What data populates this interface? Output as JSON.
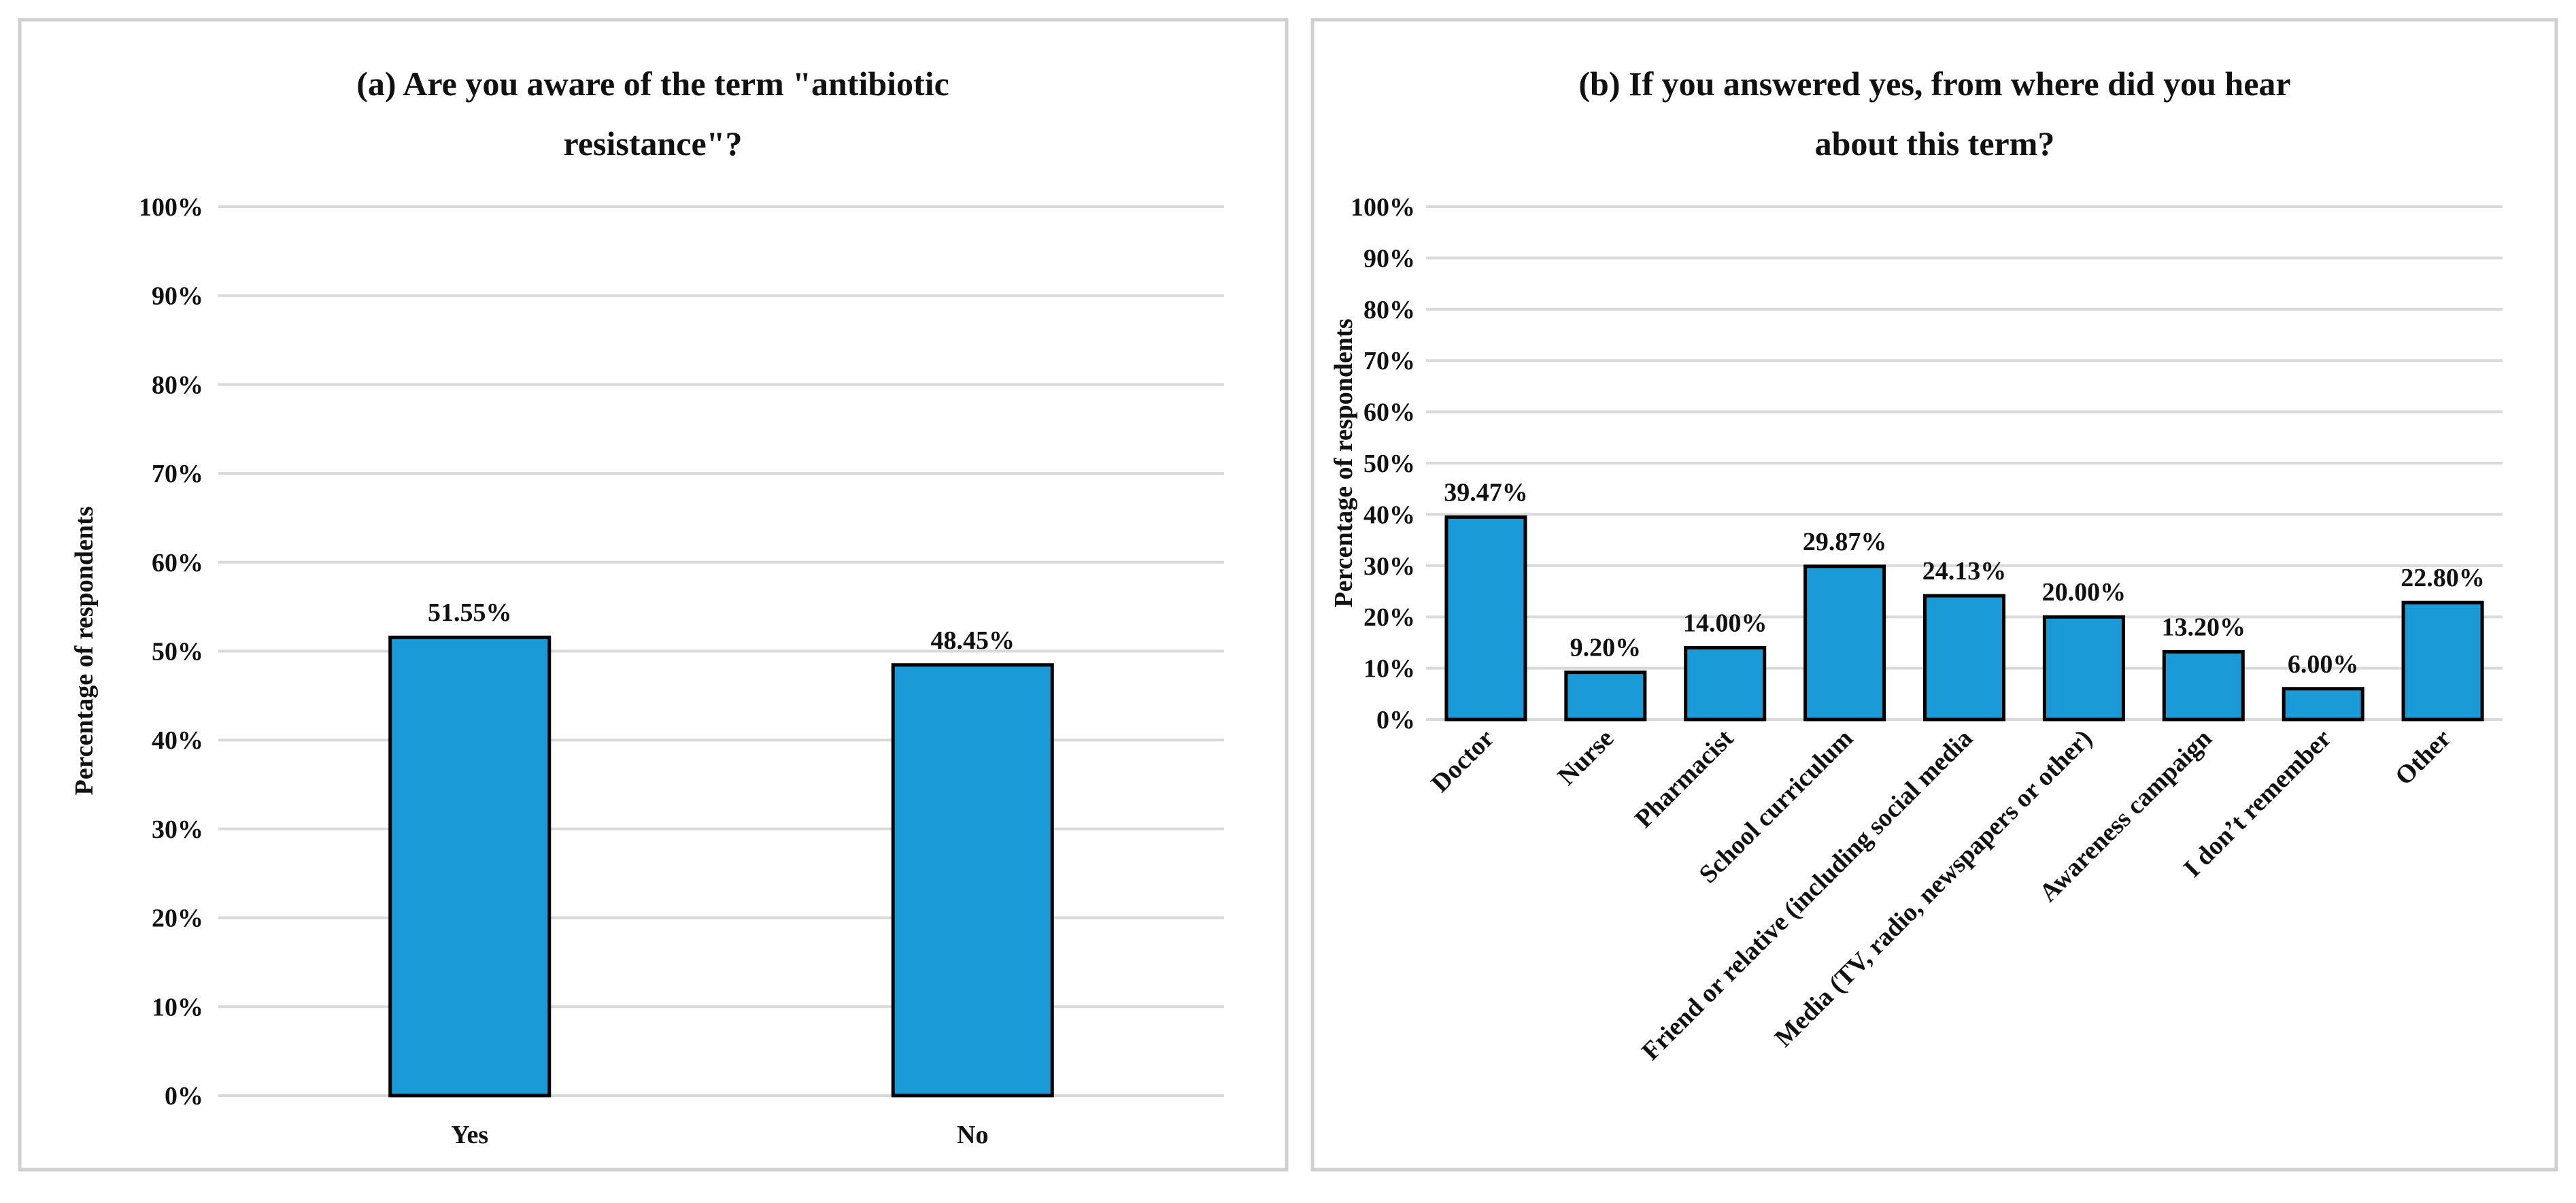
{
  "chart_data": [
    {
      "type": "bar",
      "title": [
        "(a) Are you aware of the term \"antibiotic",
        "resistance\"?"
      ],
      "xlabel": "",
      "ylabel": "Percentage of respondents",
      "ylim": [
        0,
        100
      ],
      "yticks": [
        "0%",
        "10%",
        "20%",
        "30%",
        "40%",
        "50%",
        "60%",
        "70%",
        "80%",
        "90%",
        "100%"
      ],
      "grid": true,
      "categories": [
        "Yes",
        "No"
      ],
      "values": [
        51.55,
        48.45
      ],
      "data_labels": [
        "51.55%",
        "48.45%"
      ],
      "bar_color": "#1a9ad6"
    },
    {
      "type": "bar",
      "title": [
        "(b) If you answered yes, from where did you hear",
        "about this term?"
      ],
      "xlabel": "",
      "ylabel": "Percentage of respondents",
      "ylim": [
        0,
        100
      ],
      "yticks": [
        "0%",
        "10%",
        "20%",
        "30%",
        "40%",
        "50%",
        "60%",
        "70%",
        "80%",
        "90%",
        "100%"
      ],
      "grid": true,
      "categories": [
        "Doctor",
        "Nurse",
        "Pharmacist",
        "School curriculum",
        "Friend or relative (including social media",
        "Media (TV, radio, newspapers or other)",
        "Awareness campaign",
        "I don’t remember",
        "Other"
      ],
      "values": [
        39.47,
        9.2,
        14.0,
        29.87,
        24.13,
        20.0,
        13.2,
        6.0,
        22.8
      ],
      "data_labels": [
        "39.47%",
        "9.20%",
        "14.00%",
        "29.87%",
        "24.13%",
        "20.00%",
        "13.20%",
        "6.00%",
        "22.80%"
      ],
      "bar_color": "#1a9ad6"
    }
  ]
}
